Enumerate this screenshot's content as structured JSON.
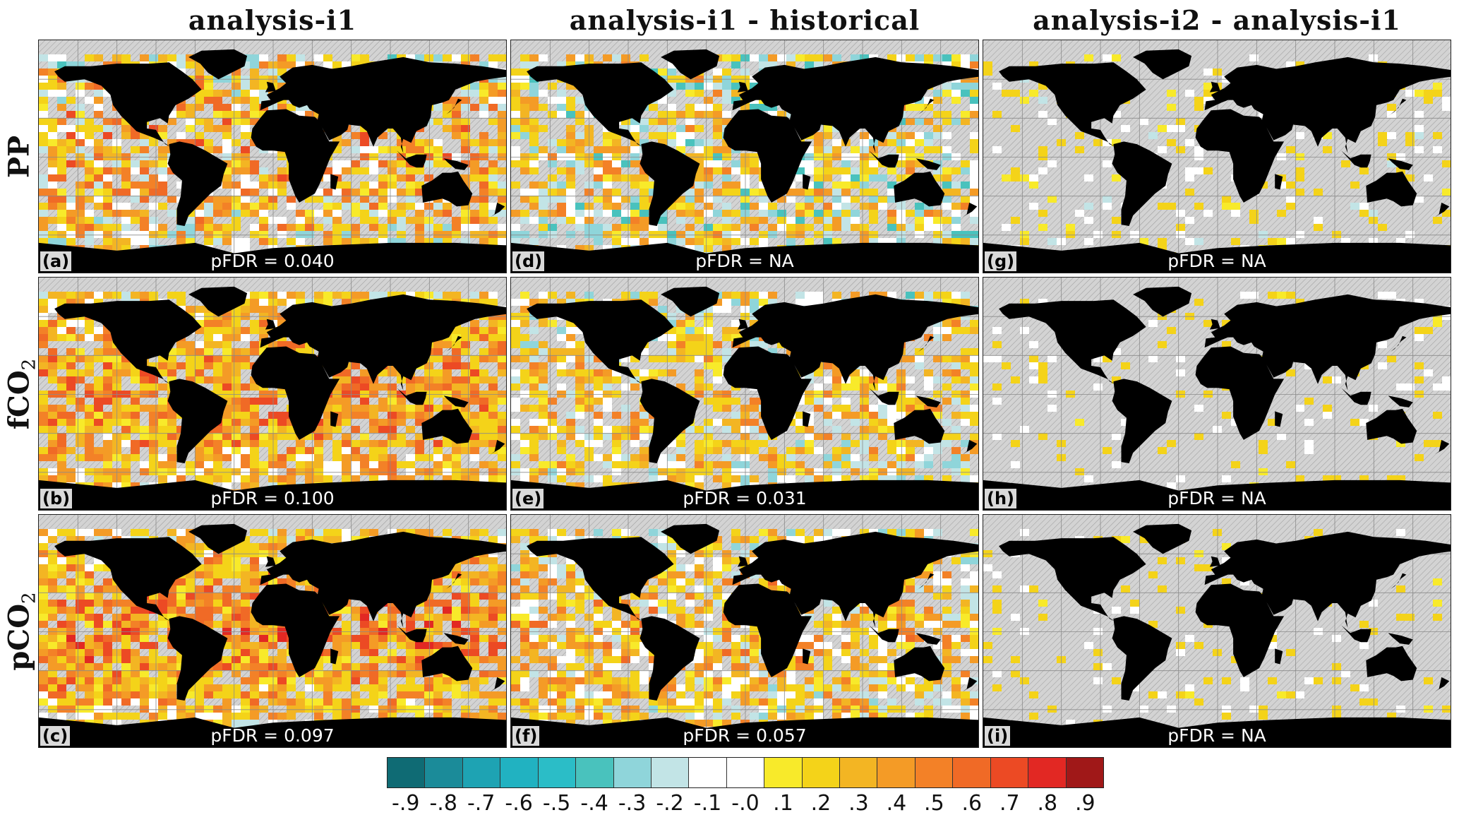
{
  "columns": [
    "analysis-i1",
    "analysis-i1 - historical",
    "analysis-i2 - analysis-i1"
  ],
  "rows": [
    {
      "name": "PP",
      "sub": ""
    },
    {
      "name": "fCO",
      "sub": "2"
    },
    {
      "name": "pCO",
      "sub": "2"
    }
  ],
  "pfdr_label": "pFDR",
  "panels": [
    {
      "label": "(a)",
      "pfdr": "0.040"
    },
    {
      "label": "(d)",
      "pfdr": "NA"
    },
    {
      "label": "(g)",
      "pfdr": "NA"
    },
    {
      "label": "(b)",
      "pfdr": "0.100"
    },
    {
      "label": "(e)",
      "pfdr": "0.031"
    },
    {
      "label": "(h)",
      "pfdr": "NA"
    },
    {
      "label": "(c)",
      "pfdr": "0.097"
    },
    {
      "label": "(f)",
      "pfdr": "0.057"
    },
    {
      "label": "(i)",
      "pfdr": "NA"
    }
  ],
  "colorbar": {
    "colors": [
      "#0f6b74",
      "#1b8b99",
      "#1ea3b3",
      "#21b2c1",
      "#2bbdc7",
      "#49c2bd",
      "#8fd5da",
      "#c2e4e6",
      "#ffffff",
      "#ffffff",
      "#f8ea2a",
      "#f4d319",
      "#f3b523",
      "#f49b26",
      "#f38127",
      "#f06a26",
      "#ec4a24",
      "#e22823",
      "#a01818"
    ],
    "tick_labels": [
      "-.9",
      "-.8",
      "-.7",
      "-.6",
      "-.5",
      "-.4",
      "-.3",
      "-.2",
      "-.1",
      "-.0",
      ".1",
      ".2",
      ".3",
      ".4",
      ".5",
      ".6",
      ".7",
      ".8",
      ".9"
    ]
  },
  "colors": {
    "land": "#000000",
    "ocean_insignificant": "#d3d3d3",
    "grid": "#8a8a8a"
  }
}
